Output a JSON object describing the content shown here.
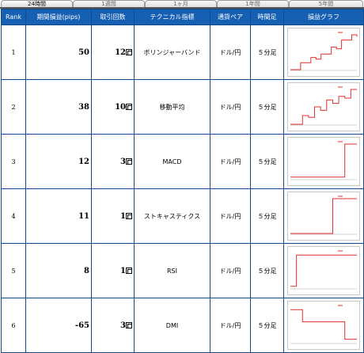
{
  "tabs": [
    "24時間",
    "1週間",
    "1ヶ月",
    "1年間",
    "5年間"
  ],
  "active_tab": 0,
  "columns": [
    "Rank",
    "期間損益(pips)",
    "取引回数",
    "テクニカル指標",
    "通貨ペア",
    "時間足",
    "損益グラフ"
  ],
  "rows": [
    {
      "rank": "1",
      "pips": "50",
      "trades": "12",
      "indicator": "ボリンジャーバンド",
      "pair": "ドル/円",
      "timeframe": "５分足"
    },
    {
      "rank": "2",
      "pips": "38",
      "trades": "10",
      "indicator": "移動平均",
      "pair": "ドル/円",
      "timeframe": "５分足"
    },
    {
      "rank": "3",
      "pips": "12",
      "trades": "3",
      "indicator": "MACD",
      "pair": "ドル/円",
      "timeframe": "５分足"
    },
    {
      "rank": "4",
      "pips": "11",
      "trades": "1",
      "indicator": "ストキャスティクス",
      "pair": "ドル/円",
      "timeframe": "５分足"
    },
    {
      "rank": "5",
      "pips": "8",
      "trades": "1",
      "indicator": "RSI",
      "pair": "ドル/円",
      "timeframe": "５分足"
    },
    {
      "rank": "6",
      "pips": "-65",
      "trades": "3",
      "indicator": "DMI",
      "pair": "ドル/円",
      "timeframe": "５分足"
    }
  ],
  "graphs": [
    [
      0,
      0,
      0.2,
      0.2,
      0.35,
      0.3,
      0.45,
      0.45,
      0.65,
      0.6,
      0.85,
      0.85,
      1,
      0.95
    ],
    [
      0,
      0,
      0.25,
      0.2,
      0.5,
      0.4,
      0.7,
      0.6,
      0.8,
      0.75,
      1,
      1
    ],
    [
      0.05,
      0.05,
      0.05,
      0.05,
      0.05,
      0.05,
      0.05,
      0.05,
      0.05,
      1,
      1,
      1
    ],
    [
      0,
      0,
      0,
      0,
      0,
      0,
      0,
      1,
      1,
      1,
      1,
      1
    ],
    [
      0.05,
      0.95,
      0.95,
      0.95,
      0.95,
      0.95,
      0.95,
      0.95,
      0.95,
      0.95,
      0.95,
      0.95
    ],
    [
      0.95,
      0.95,
      0.6,
      0.6,
      0.6,
      0.6,
      0.6,
      0.6,
      0.6,
      0.1,
      0.1,
      0.1
    ]
  ],
  "colors": {
    "header_bg": "#1560b3",
    "line": "#e03030",
    "border": "#0e4a8c"
  }
}
